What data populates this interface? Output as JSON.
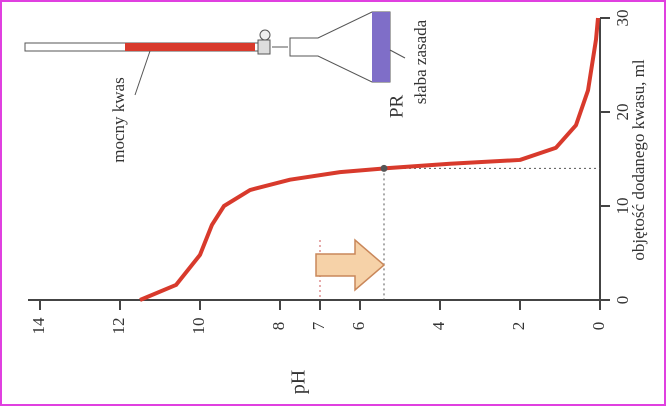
{
  "chart_data": {
    "type": "line",
    "x_label": "objętość dodanego kwasu, ml",
    "y_label": "pH",
    "x": [
      0,
      1.6,
      4.8,
      8,
      10,
      11.7,
      12.8,
      13.6,
      14,
      14.5,
      14.9,
      16.2,
      18.6,
      22.3,
      27.7,
      30
    ],
    "series": [
      {
        "color": "#d83a2c",
        "values": [
          11.5,
          10.6,
          10,
          9.7,
          9.4,
          8.75,
          7.75,
          6.5,
          5.4,
          3.75,
          2,
          1.1,
          0.6,
          0.3,
          0.1,
          0.05
        ]
      }
    ],
    "xlim": [
      0,
      30
    ],
    "xticks": [
      0,
      10,
      20,
      30
    ],
    "ylim": [
      0,
      14.3
    ],
    "yticks": [
      0,
      2,
      4,
      6,
      7,
      8,
      10,
      12,
      14
    ],
    "equivalence_point": {
      "label": "PR",
      "x": 14,
      "y": 5.4
    },
    "acid_label": "mocny kwas",
    "base_label": "słaba zasada"
  }
}
